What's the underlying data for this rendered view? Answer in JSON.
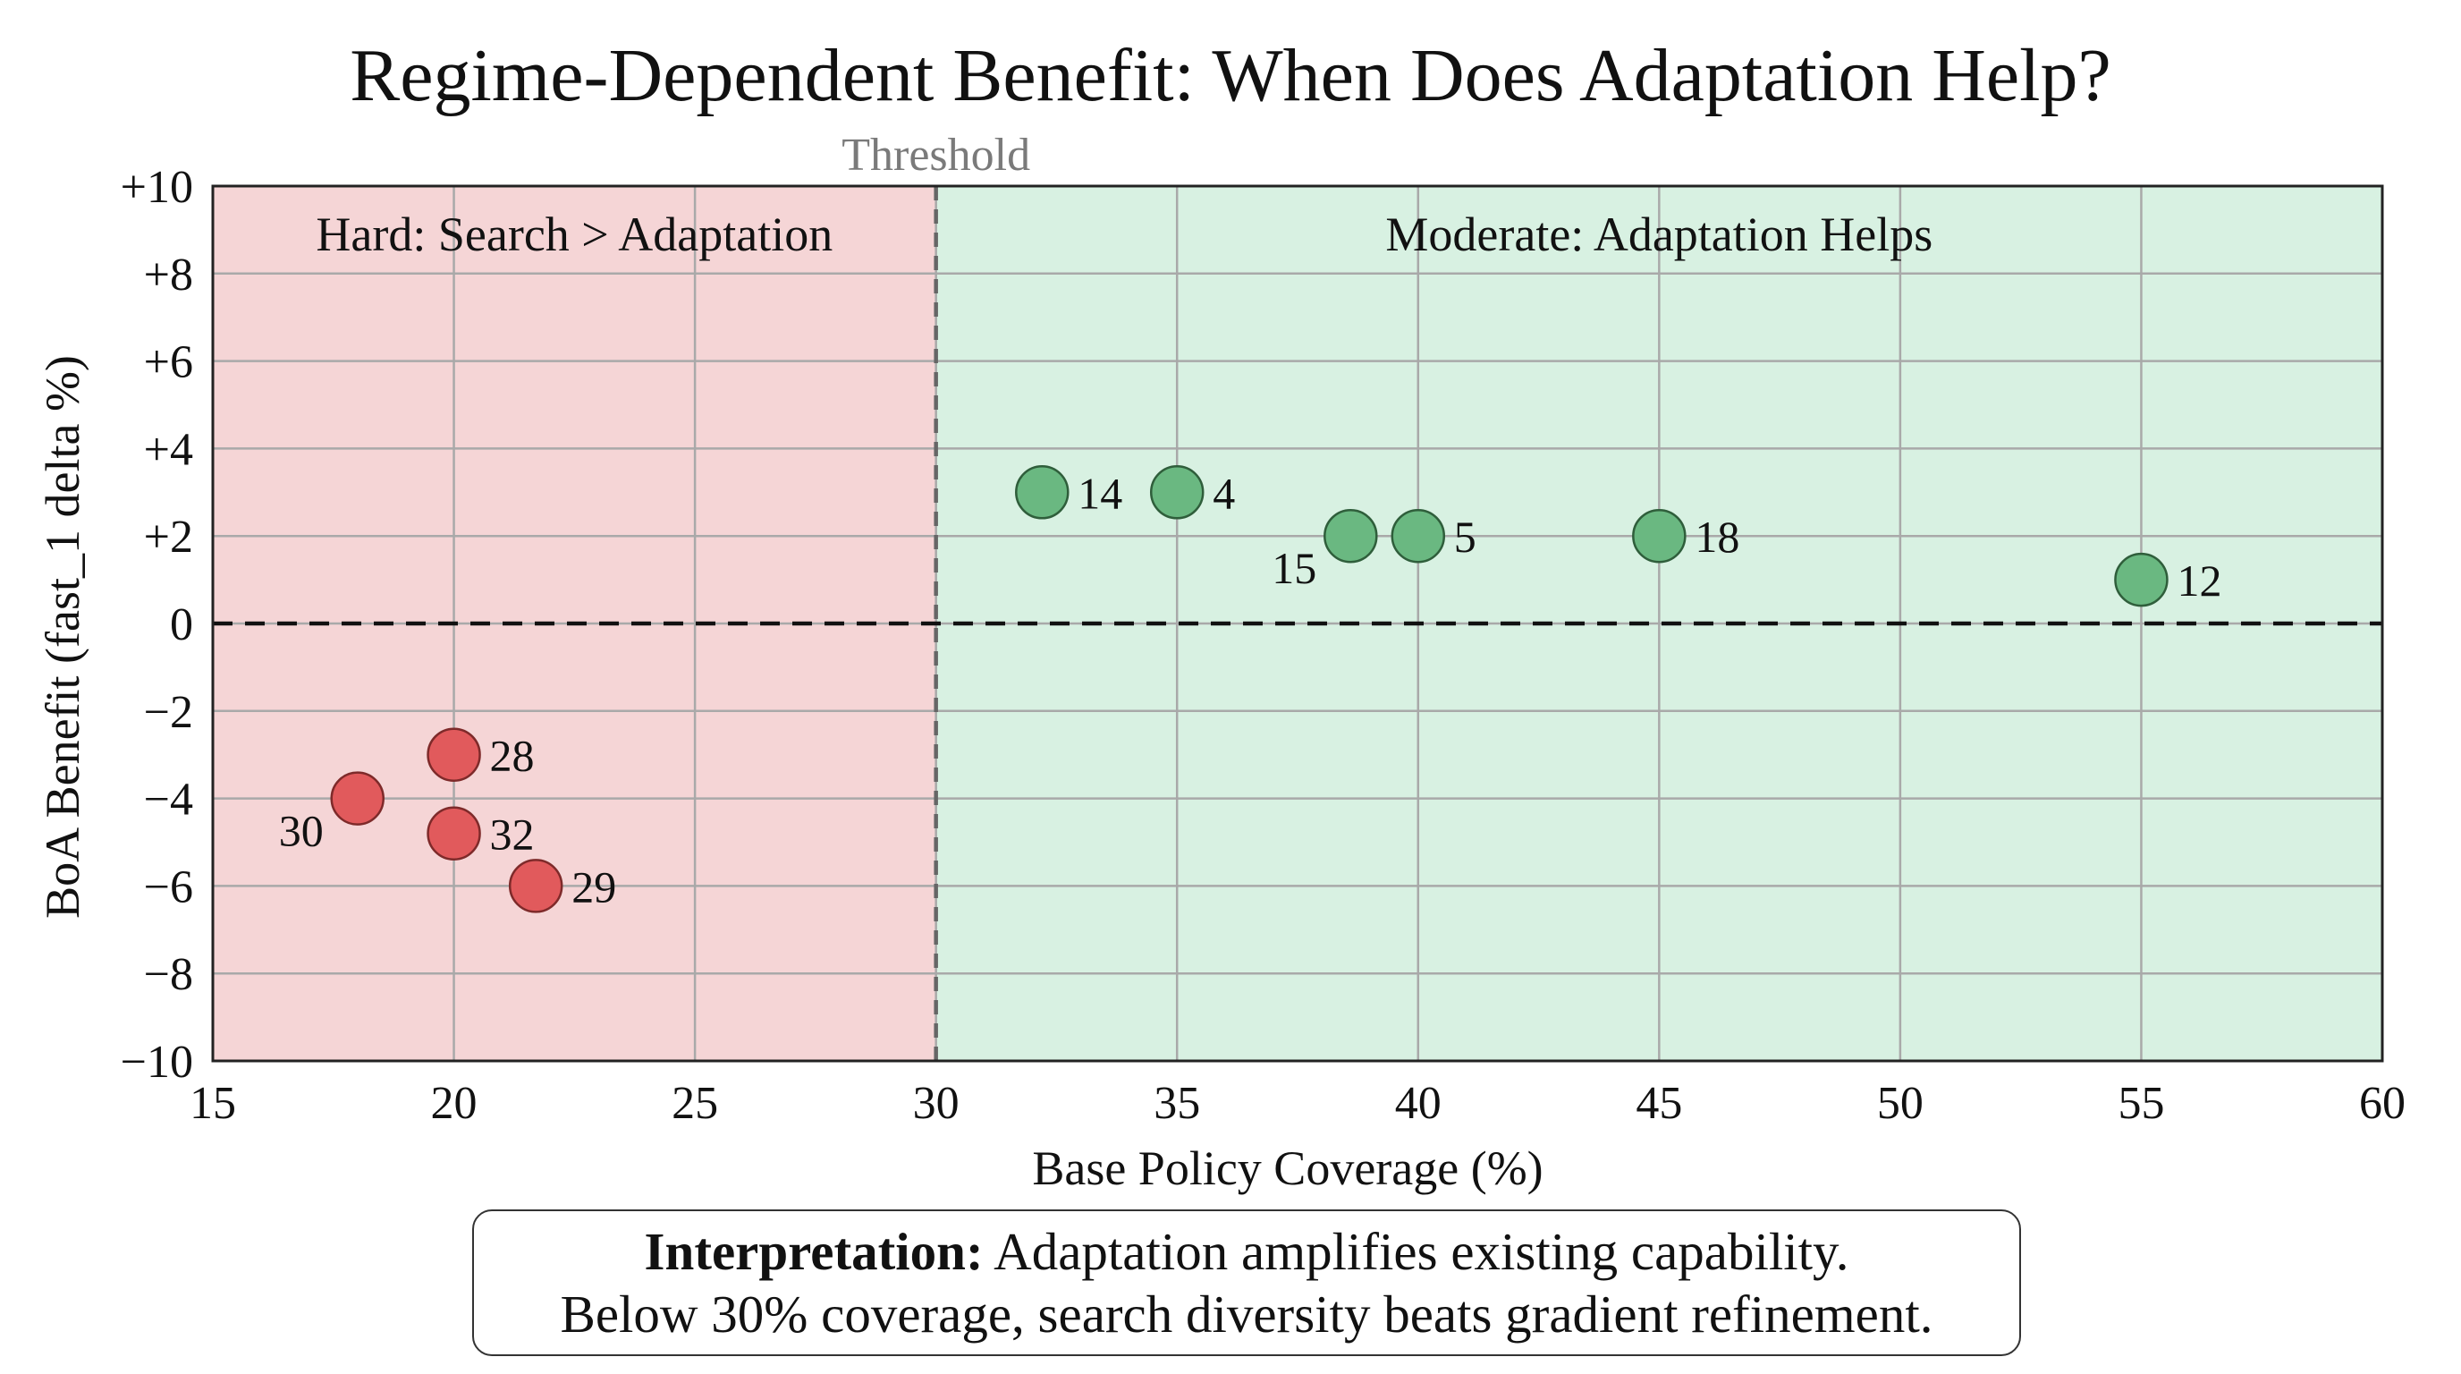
{
  "chart_data": {
    "type": "scatter",
    "title": "Regime-Dependent Benefit: When Does Adaptation Help?",
    "xlabel": "Base Policy Coverage (%)",
    "ylabel": "BoA Benefit (fast_1 delta %)",
    "xlim": [
      15,
      60
    ],
    "ylim": [
      -10,
      10
    ],
    "x_ticks": [
      15,
      20,
      25,
      30,
      35,
      40,
      45,
      50,
      55,
      60
    ],
    "x_tick_labels": [
      "15",
      "20",
      "25",
      "30",
      "35",
      "40",
      "45",
      "50",
      "55",
      "60"
    ],
    "y_ticks": [
      10,
      8,
      6,
      4,
      2,
      0,
      -2,
      -4,
      -6,
      -8,
      -10
    ],
    "y_tick_labels": [
      "+10",
      "+8",
      "+6",
      "+4",
      "+2",
      "0",
      "−2",
      "−4",
      "−6",
      "−8",
      "−10"
    ],
    "grid": true,
    "threshold": {
      "x": 30,
      "label": "Threshold"
    },
    "zero_line": 0,
    "regions": [
      {
        "name": "hard",
        "label": "Hard: Search > Adaptation",
        "x_range": [
          15,
          30
        ],
        "color": "#f5d5d6"
      },
      {
        "name": "moderate",
        "label": "Moderate: Adaptation Helps",
        "x_range": [
          30,
          60
        ],
        "color": "#d8f1e2"
      }
    ],
    "series": [
      {
        "name": "hard-regime",
        "fill": "#e15a5c",
        "stroke": "#7e2a2a",
        "points": [
          {
            "id": "28",
            "x": 20.0,
            "y": -3.0,
            "label_side": "right"
          },
          {
            "id": "30",
            "x": 18.0,
            "y": -4.0,
            "label_side": "below-left"
          },
          {
            "id": "32",
            "x": 20.0,
            "y": -4.8,
            "label_side": "right"
          },
          {
            "id": "29",
            "x": 21.7,
            "y": -6.0,
            "label_side": "right"
          }
        ]
      },
      {
        "name": "moderate-regime",
        "fill": "#6ab881",
        "stroke": "#2f5e3b",
        "points": [
          {
            "id": "14",
            "x": 32.2,
            "y": 3.0,
            "label_side": "right"
          },
          {
            "id": "4",
            "x": 35.0,
            "y": 3.0,
            "label_side": "right"
          },
          {
            "id": "15",
            "x": 38.6,
            "y": 2.0,
            "label_side": "below-left"
          },
          {
            "id": "5",
            "x": 40.0,
            "y": 2.0,
            "label_side": "right"
          },
          {
            "id": "18",
            "x": 45.0,
            "y": 2.0,
            "label_side": "right"
          },
          {
            "id": "12",
            "x": 55.0,
            "y": 1.0,
            "label_side": "right"
          }
        ]
      }
    ]
  },
  "interpretation": {
    "bold_lead": "Interpretation:",
    "line1": " Adaptation amplifies existing capability.",
    "line2": "Below 30% coverage, search diversity beats gradient refinement."
  }
}
